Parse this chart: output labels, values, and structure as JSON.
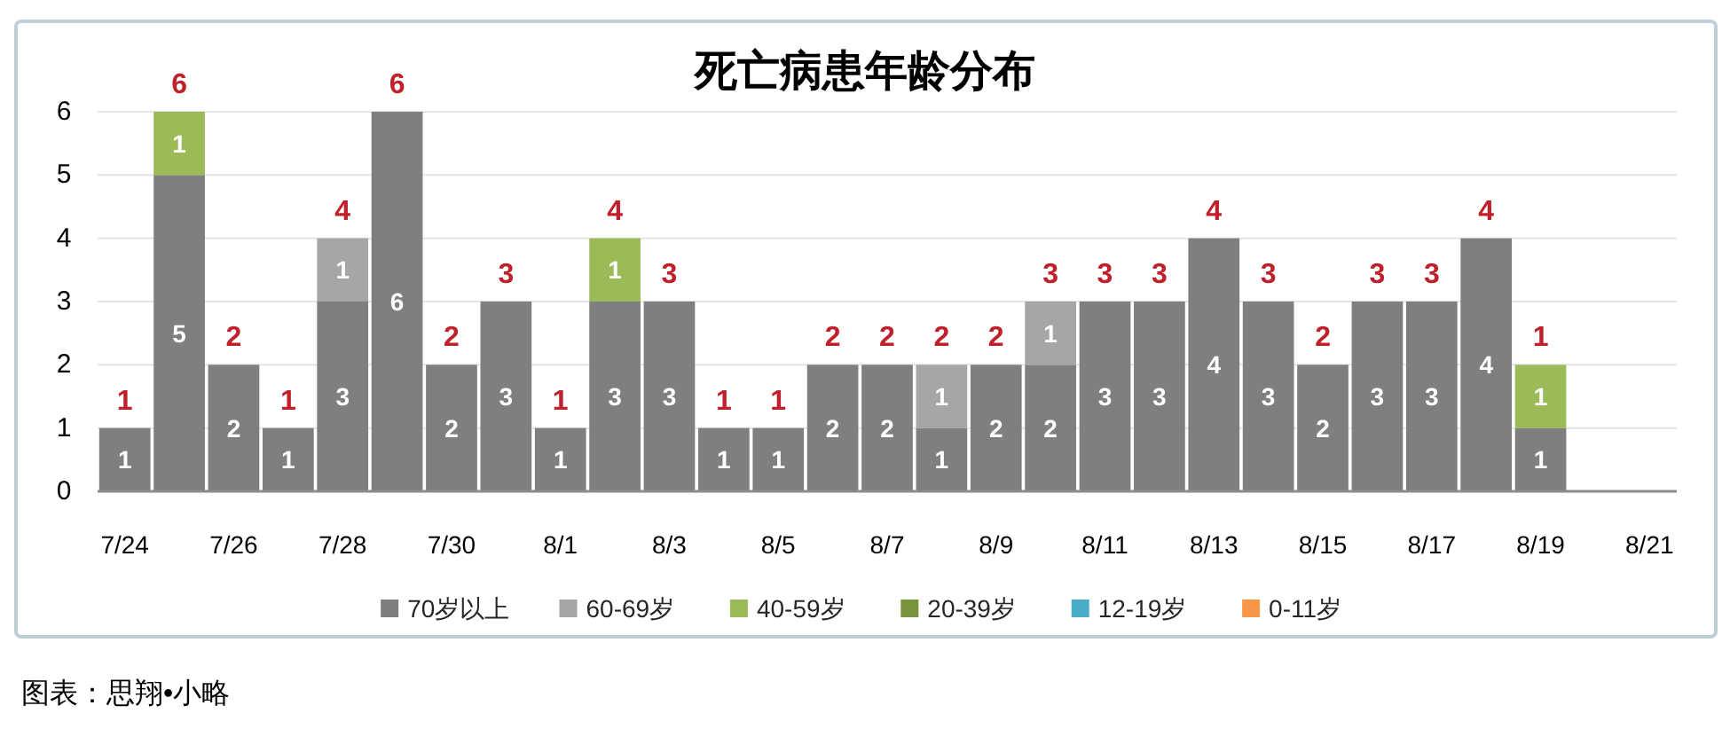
{
  "chart_data": {
    "type": "bar",
    "title": "死亡病患年龄分布",
    "categories": [
      "7/24",
      null,
      "7/26",
      null,
      "7/28",
      null,
      "7/30",
      null,
      "8/1",
      null,
      "8/3",
      null,
      "8/5",
      null,
      "8/7",
      null,
      "8/9",
      null,
      "8/11",
      null,
      "8/13",
      null,
      "8/15",
      null,
      "8/17",
      null,
      "8/19",
      null,
      "8/21"
    ],
    "stacked": true,
    "series": [
      {
        "name": "70岁以上",
        "color": "#7f7f7f",
        "values": [
          1,
          5,
          2,
          1,
          3,
          6,
          2,
          3,
          1,
          3,
          3,
          1,
          1,
          2,
          2,
          1,
          2,
          2,
          3,
          3,
          4,
          3,
          2,
          3,
          3,
          4,
          1,
          null,
          null
        ]
      },
      {
        "name": "60-69岁",
        "color": "#a6a6a6",
        "values": [
          null,
          null,
          null,
          null,
          1,
          null,
          null,
          null,
          null,
          null,
          null,
          null,
          null,
          null,
          null,
          1,
          null,
          1,
          null,
          null,
          null,
          null,
          null,
          null,
          null,
          null,
          null,
          null,
          null
        ]
      },
      {
        "name": "40-59岁",
        "color": "#9bbb59",
        "values": [
          null,
          1,
          null,
          null,
          null,
          null,
          null,
          null,
          null,
          1,
          null,
          null,
          null,
          null,
          null,
          null,
          null,
          null,
          null,
          null,
          null,
          null,
          null,
          null,
          null,
          null,
          1,
          null,
          null
        ]
      },
      {
        "name": "20-39岁",
        "color": "#77933c",
        "values": [
          null,
          null,
          null,
          null,
          null,
          null,
          null,
          null,
          null,
          null,
          null,
          null,
          null,
          null,
          null,
          null,
          null,
          null,
          null,
          null,
          null,
          null,
          null,
          null,
          null,
          null,
          null,
          null,
          null
        ]
      },
      {
        "name": "12-19岁",
        "color": "#4bacc6",
        "values": [
          null,
          null,
          null,
          null,
          null,
          null,
          null,
          null,
          null,
          null,
          null,
          null,
          null,
          null,
          null,
          null,
          null,
          null,
          null,
          null,
          null,
          null,
          null,
          null,
          null,
          null,
          null,
          null,
          null
        ]
      },
      {
        "name": "0-11岁",
        "color": "#f79646",
        "values": [
          null,
          null,
          null,
          null,
          null,
          null,
          null,
          null,
          null,
          null,
          null,
          null,
          null,
          null,
          null,
          null,
          null,
          null,
          null,
          null,
          null,
          null,
          null,
          null,
          null,
          null,
          null,
          null,
          null
        ]
      }
    ],
    "totals": [
      "1",
      "6",
      "2",
      "1",
      "4",
      "6",
      "2",
      "3",
      "1",
      "4",
      "3",
      "1",
      "1",
      "2",
      "2",
      "2",
      "2",
      "3",
      "3",
      "3",
      "4",
      "3",
      "2",
      "3",
      "3",
      "4",
      "1",
      null,
      null
    ],
    "data_labels": true,
    "ylim": [
      0,
      6
    ],
    "yticks": [
      0,
      1,
      2,
      3,
      4,
      5,
      6
    ],
    "grid": "y",
    "legend": "bottom",
    "annotations": [
      "图表：思翔•小略"
    ]
  }
}
